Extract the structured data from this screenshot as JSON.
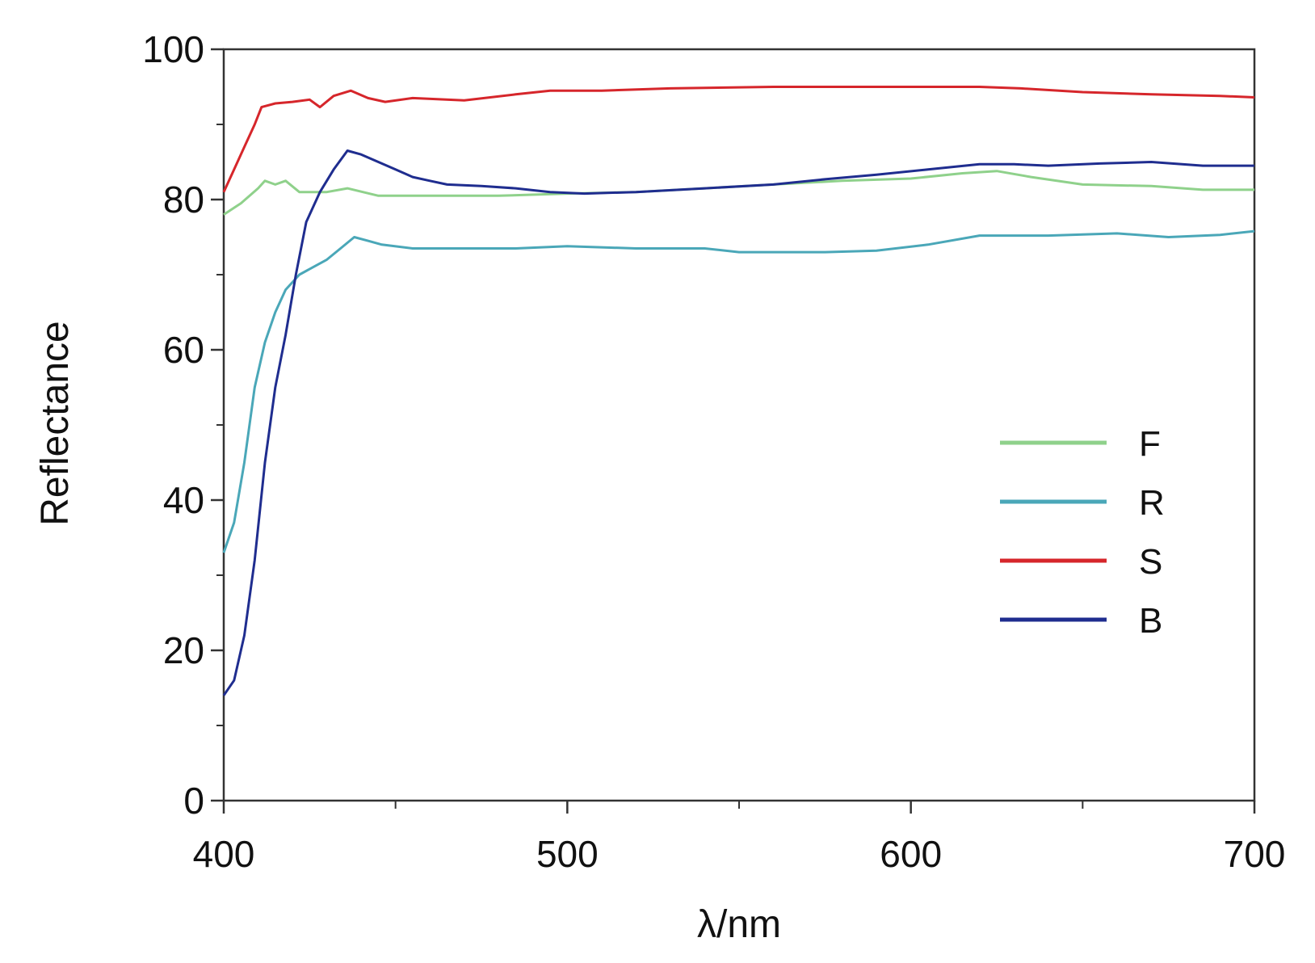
{
  "chart_data": {
    "type": "line",
    "title": "",
    "xlabel": "λ/nm",
    "ylabel": "Reflectance",
    "xlim": [
      400,
      700
    ],
    "ylim": [
      0,
      100
    ],
    "x_ticks": [
      400,
      500,
      600,
      700
    ],
    "x_minor_ticks": [
      450,
      550,
      650
    ],
    "y_ticks": [
      0,
      20,
      40,
      60,
      80,
      100
    ],
    "y_minor_ticks": [
      10,
      30,
      50,
      70,
      90
    ],
    "x_tick_labels": [
      "400",
      "500",
      "600",
      "700"
    ],
    "y_tick_labels": [
      "0",
      "20",
      "40",
      "60",
      "80",
      "100"
    ],
    "grid": false,
    "legend_position": "right",
    "series": [
      {
        "name": "F",
        "color": "#8fd18b",
        "points": [
          [
            400,
            78
          ],
          [
            405,
            79.5
          ],
          [
            410,
            81.5
          ],
          [
            412,
            82.5
          ],
          [
            415,
            82
          ],
          [
            418,
            82.5
          ],
          [
            422,
            81
          ],
          [
            430,
            81
          ],
          [
            436,
            81.5
          ],
          [
            445,
            80.5
          ],
          [
            460,
            80.5
          ],
          [
            480,
            80.5
          ],
          [
            500,
            80.8
          ],
          [
            520,
            81
          ],
          [
            540,
            81.5
          ],
          [
            560,
            82
          ],
          [
            580,
            82.5
          ],
          [
            600,
            82.8
          ],
          [
            615,
            83.5
          ],
          [
            625,
            83.8
          ],
          [
            635,
            83
          ],
          [
            650,
            82
          ],
          [
            670,
            81.8
          ],
          [
            685,
            81.3
          ],
          [
            700,
            81.3
          ]
        ]
      },
      {
        "name": "R",
        "color": "#4aa7b8",
        "points": [
          [
            400,
            33
          ],
          [
            403,
            37
          ],
          [
            406,
            45
          ],
          [
            409,
            55
          ],
          [
            412,
            61
          ],
          [
            415,
            65
          ],
          [
            418,
            68
          ],
          [
            422,
            70
          ],
          [
            426,
            71
          ],
          [
            430,
            72
          ],
          [
            434,
            73.5
          ],
          [
            438,
            75
          ],
          [
            442,
            74.5
          ],
          [
            446,
            74
          ],
          [
            455,
            73.5
          ],
          [
            470,
            73.5
          ],
          [
            485,
            73.5
          ],
          [
            500,
            73.8
          ],
          [
            520,
            73.5
          ],
          [
            540,
            73.5
          ],
          [
            550,
            73
          ],
          [
            560,
            73
          ],
          [
            575,
            73
          ],
          [
            590,
            73.2
          ],
          [
            605,
            74
          ],
          [
            620,
            75.2
          ],
          [
            640,
            75.2
          ],
          [
            660,
            75.5
          ],
          [
            675,
            75
          ],
          [
            690,
            75.3
          ],
          [
            700,
            75.8
          ]
        ]
      },
      {
        "name": "S",
        "color": "#d6262b",
        "points": [
          [
            400,
            81
          ],
          [
            403,
            84
          ],
          [
            406,
            87
          ],
          [
            409,
            90
          ],
          [
            411,
            92.3
          ],
          [
            415,
            92.8
          ],
          [
            420,
            93
          ],
          [
            425,
            93.3
          ],
          [
            428,
            92.3
          ],
          [
            432,
            93.8
          ],
          [
            437,
            94.5
          ],
          [
            442,
            93.5
          ],
          [
            447,
            93
          ],
          [
            455,
            93.5
          ],
          [
            470,
            93.2
          ],
          [
            485,
            94
          ],
          [
            495,
            94.5
          ],
          [
            510,
            94.5
          ],
          [
            530,
            94.8
          ],
          [
            560,
            95
          ],
          [
            590,
            95
          ],
          [
            620,
            95
          ],
          [
            632,
            94.8
          ],
          [
            650,
            94.3
          ],
          [
            670,
            94
          ],
          [
            690,
            93.8
          ],
          [
            700,
            93.6
          ]
        ]
      },
      {
        "name": "B",
        "color": "#1f2d8f",
        "points": [
          [
            400,
            14
          ],
          [
            403,
            16
          ],
          [
            406,
            22
          ],
          [
            409,
            32
          ],
          [
            412,
            45
          ],
          [
            415,
            55
          ],
          [
            418,
            62
          ],
          [
            421,
            70
          ],
          [
            424,
            77
          ],
          [
            428,
            81
          ],
          [
            432,
            84
          ],
          [
            436,
            86.5
          ],
          [
            440,
            86
          ],
          [
            445,
            85
          ],
          [
            450,
            84
          ],
          [
            455,
            83
          ],
          [
            460,
            82.5
          ],
          [
            465,
            82
          ],
          [
            475,
            81.8
          ],
          [
            485,
            81.5
          ],
          [
            495,
            81
          ],
          [
            505,
            80.8
          ],
          [
            520,
            81
          ],
          [
            540,
            81.5
          ],
          [
            560,
            82
          ],
          [
            575,
            82.7
          ],
          [
            590,
            83.3
          ],
          [
            605,
            84
          ],
          [
            620,
            84.7
          ],
          [
            630,
            84.7
          ],
          [
            640,
            84.5
          ],
          [
            655,
            84.8
          ],
          [
            670,
            85
          ],
          [
            685,
            84.5
          ],
          [
            700,
            84.5
          ]
        ]
      }
    ]
  }
}
